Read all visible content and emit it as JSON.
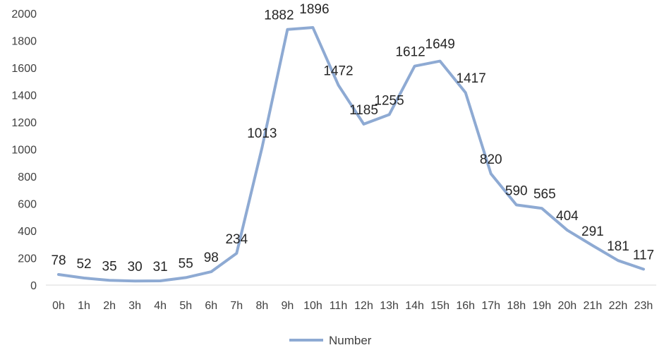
{
  "chart_data": {
    "type": "line",
    "categories": [
      "0h",
      "1h",
      "2h",
      "3h",
      "4h",
      "5h",
      "6h",
      "7h",
      "8h",
      "9h",
      "10h",
      "11h",
      "12h",
      "13h",
      "14h",
      "15h",
      "16h",
      "17h",
      "18h",
      "19h",
      "20h",
      "21h",
      "22h",
      "23h"
    ],
    "series": [
      {
        "name": "Number",
        "values": [
          78,
          52,
          35,
          30,
          31,
          55,
          98,
          234,
          1013,
          1882,
          1896,
          1472,
          1185,
          1255,
          1612,
          1649,
          1417,
          820,
          590,
          565,
          404,
          291,
          181,
          117
        ],
        "color": "#8eaad3"
      }
    ],
    "data_labels": [
      "78",
      "52",
      "35",
      "30",
      "31",
      "55",
      "98",
      "234",
      "1013",
      "1882",
      "1896",
      "1472",
      "1185",
      "1255",
      "1612",
      "1649",
      "1417",
      "820",
      "590",
      "565",
      "404",
      "291",
      "181",
      "117"
    ],
    "y_ticks": [
      "0",
      "200",
      "400",
      "600",
      "800",
      "1000",
      "1200",
      "1400",
      "1600",
      "1800",
      "2000"
    ],
    "ylim": [
      0,
      2000
    ],
    "grid": false,
    "legend_position": "bottom",
    "legend": [
      "Number"
    ]
  }
}
